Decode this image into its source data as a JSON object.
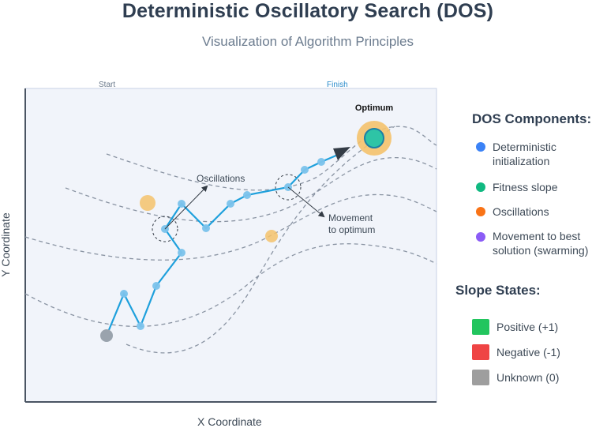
{
  "title": "Deterministic Oscillatory Search (DOS)",
  "subtitle": "Visualization of Algorithm Principles",
  "axes": {
    "xlabel": "X Coordinate",
    "ylabel": "Y Coordinate"
  },
  "plot": {
    "start_label": "Start",
    "finish_label": "Finish",
    "optimum_label": "Optimum",
    "oscillations_label": "Oscillations",
    "movement_label_line1": "Movement",
    "movement_label_line2": "to optimum"
  },
  "components": {
    "heading": "DOS Components:",
    "items": [
      {
        "line1": "Deterministic",
        "line2": "initialization",
        "color": "#3b82f6"
      },
      {
        "line1": "Fitness slope",
        "line2": "",
        "color": "#10b981"
      },
      {
        "line1": "Oscillations",
        "line2": "",
        "color": "#f97316"
      },
      {
        "line1": "Movement to best",
        "line2": "solution (swarming)",
        "color": "#8b5cf6"
      }
    ]
  },
  "slope_states": {
    "heading": "Slope States:",
    "items": [
      {
        "label": "Positive (+1)",
        "color": "#22c55e"
      },
      {
        "label": "Negative (-1)",
        "color": "#ef4444"
      },
      {
        "label": "Unknown (0)",
        "color": "#9e9e9e"
      }
    ]
  },
  "colors": {
    "path": "#1ea0dc",
    "point": "#7cc3ec",
    "contour": "#8a94a3",
    "plot_bg": "#f1f4fa",
    "optimum_ring": "#f4c26b",
    "optimum_core": "#2ec4a6"
  }
}
